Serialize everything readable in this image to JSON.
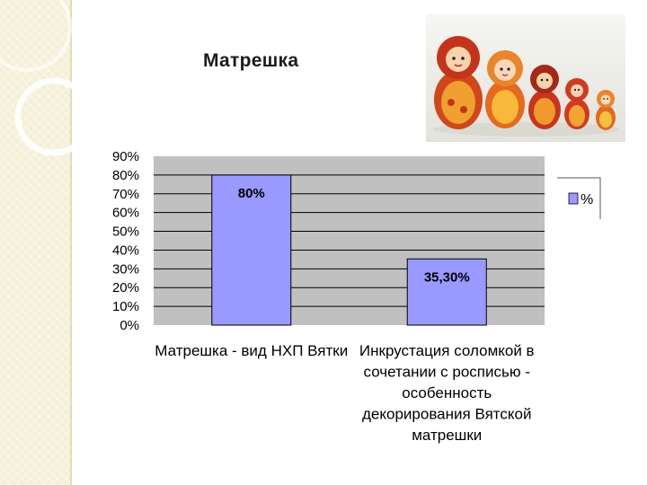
{
  "slide": {
    "title": "Матрешка"
  },
  "image": {
    "icon": "matryoshka-dolls-photo"
  },
  "colors": {
    "bar": "#9999ff",
    "plot_bg": "#c0c0c0",
    "strip": "#f4efd6"
  },
  "chart_data": {
    "type": "bar",
    "title": "",
    "xlabel": "",
    "ylabel": "",
    "ylim": [
      0,
      90
    ],
    "yticks": [
      "0%",
      "10%",
      "20%",
      "30%",
      "40%",
      "50%",
      "60%",
      "70%",
      "80%",
      "90%"
    ],
    "grid": true,
    "legend": "right",
    "categories": [
      [
        "Матрешка - вид НХП Вятки"
      ],
      [
        "Инкрустация соломкой в",
        "сочетании с росписью -",
        "особенность",
        "декорирования Вятской",
        "матрешки"
      ]
    ],
    "series": [
      {
        "name": "%",
        "values": [
          80,
          35.3
        ],
        "labels": [
          "80%",
          "35,30%"
        ]
      }
    ]
  }
}
